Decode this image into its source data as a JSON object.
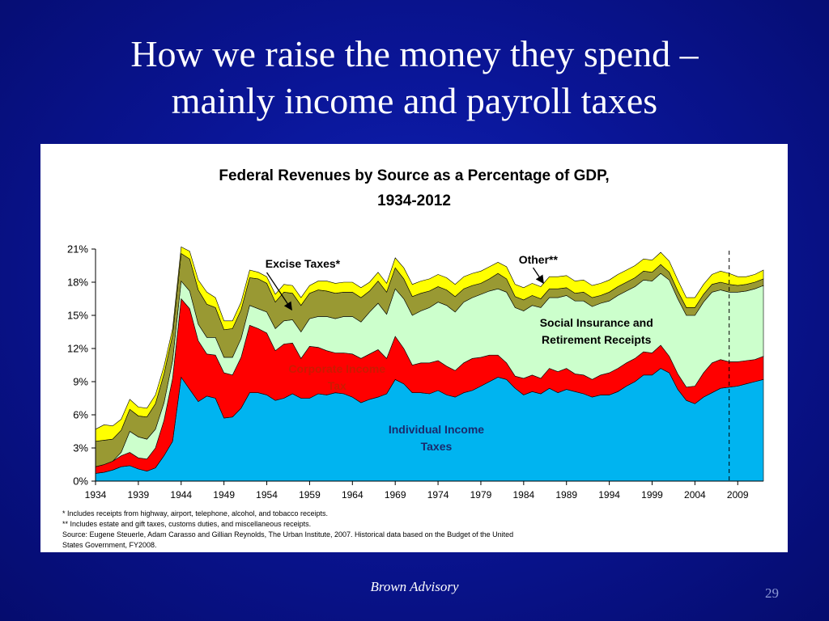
{
  "slide": {
    "title_line1": "How we raise the money they spend –",
    "title_line2": "mainly income and payroll taxes",
    "footer": "Brown Advisory",
    "page_number": "29"
  },
  "chart_data": {
    "type": "area",
    "stacked": true,
    "title_line1": "Federal Revenues by Source as a Percentage of GDP,",
    "title_line2": "1934-2012",
    "xlabel": "",
    "ylabel": "",
    "x_ticks": [
      "1934",
      "1939",
      "1944",
      "1949",
      "1954",
      "1959",
      "1964",
      "1969",
      "1974",
      "1979",
      "1984",
      "1989",
      "1994",
      "1999",
      "2004",
      "2009"
    ],
    "y_ticks": [
      "0%",
      "3%",
      "6%",
      "9%",
      "12%",
      "15%",
      "18%",
      "21%"
    ],
    "xlim": [
      1934,
      2012
    ],
    "ylim": [
      0,
      21
    ],
    "projection_line_year": 2008,
    "x": [
      1934,
      1935,
      1936,
      1937,
      1938,
      1939,
      1940,
      1941,
      1942,
      1943,
      1944,
      1945,
      1946,
      1947,
      1948,
      1949,
      1950,
      1951,
      1952,
      1953,
      1954,
      1955,
      1956,
      1957,
      1958,
      1959,
      1960,
      1961,
      1962,
      1963,
      1964,
      1965,
      1966,
      1967,
      1968,
      1969,
      1970,
      1971,
      1972,
      1973,
      1974,
      1975,
      1976,
      1977,
      1978,
      1979,
      1980,
      1981,
      1982,
      1983,
      1984,
      1985,
      1986,
      1987,
      1988,
      1989,
      1990,
      1991,
      1992,
      1993,
      1994,
      1995,
      1996,
      1997,
      1998,
      1999,
      2000,
      2001,
      2002,
      2003,
      2004,
      2005,
      2006,
      2007,
      2008,
      2009,
      2010,
      2011,
      2012
    ],
    "series": [
      {
        "name": "Individual Income Taxes",
        "color": "#00b4f0",
        "values": [
          0.7,
          0.8,
          1.0,
          1.3,
          1.4,
          1.1,
          0.9,
          1.2,
          2.3,
          3.6,
          9.4,
          8.3,
          7.2,
          7.7,
          7.5,
          5.7,
          5.8,
          6.6,
          8.0,
          8.0,
          7.8,
          7.3,
          7.5,
          7.9,
          7.5,
          7.5,
          7.9,
          7.8,
          8.0,
          7.9,
          7.6,
          7.1,
          7.4,
          7.6,
          7.9,
          9.2,
          8.8,
          8.0,
          8.0,
          7.9,
          8.2,
          7.8,
          7.6,
          8.0,
          8.2,
          8.6,
          9.0,
          9.4,
          9.2,
          8.4,
          7.8,
          8.1,
          7.9,
          8.4,
          8.0,
          8.3,
          8.1,
          7.9,
          7.6,
          7.8,
          7.8,
          8.1,
          8.6,
          9.0,
          9.6,
          9.6,
          10.2,
          9.8,
          8.3,
          7.3,
          7.0,
          7.6,
          8.0,
          8.4,
          8.5,
          8.6,
          8.8,
          9.0,
          9.2
        ]
      },
      {
        "name": "Corporate Income Tax",
        "color": "#ff0000",
        "values": [
          0.6,
          0.7,
          0.8,
          1.0,
          1.2,
          1.0,
          1.1,
          1.8,
          3.2,
          5.7,
          7.1,
          7.3,
          5.5,
          3.8,
          3.9,
          4.1,
          3.8,
          4.6,
          6.1,
          5.8,
          5.6,
          4.5,
          4.9,
          4.6,
          3.6,
          4.7,
          4.2,
          4.0,
          3.6,
          3.7,
          3.9,
          4.0,
          4.1,
          4.3,
          3.2,
          3.9,
          3.2,
          2.5,
          2.7,
          2.8,
          2.7,
          2.6,
          2.4,
          2.7,
          2.9,
          2.6,
          2.4,
          2.0,
          1.5,
          1.1,
          1.5,
          1.5,
          1.4,
          1.8,
          1.9,
          1.9,
          1.6,
          1.7,
          1.6,
          1.8,
          2.0,
          2.1,
          2.1,
          2.1,
          2.1,
          2.0,
          2.1,
          1.5,
          1.4,
          1.2,
          1.6,
          2.2,
          2.7,
          2.6,
          2.3,
          2.2,
          2.1,
          2.0,
          2.1
        ]
      },
      {
        "name": "Social Insurance and Retirement Receipts",
        "color": "#ccffcc",
        "values": [
          0.0,
          0.0,
          0.0,
          0.3,
          1.9,
          1.9,
          1.8,
          1.7,
          1.6,
          1.6,
          1.6,
          1.6,
          1.5,
          1.5,
          1.6,
          1.4,
          1.6,
          1.7,
          1.8,
          1.8,
          1.9,
          2.0,
          2.1,
          2.1,
          2.4,
          2.5,
          2.8,
          3.1,
          3.1,
          3.3,
          3.4,
          3.3,
          3.8,
          4.2,
          4.0,
          4.3,
          4.5,
          4.5,
          4.7,
          5.0,
          5.3,
          5.5,
          5.3,
          5.5,
          5.5,
          5.7,
          5.8,
          6.0,
          6.4,
          6.2,
          6.1,
          6.3,
          6.4,
          6.4,
          6.7,
          6.6,
          6.6,
          6.7,
          6.6,
          6.5,
          6.5,
          6.6,
          6.5,
          6.5,
          6.5,
          6.5,
          6.5,
          6.9,
          6.8,
          6.5,
          6.4,
          6.4,
          6.4,
          6.3,
          6.3,
          6.3,
          6.3,
          6.4,
          6.4
        ]
      },
      {
        "name": "Excise Taxes*",
        "color": "#999933",
        "values": [
          2.3,
          2.2,
          2.0,
          2.0,
          2.0,
          1.9,
          2.0,
          2.3,
          2.6,
          2.3,
          2.5,
          2.9,
          3.1,
          3.0,
          2.7,
          2.5,
          2.6,
          2.6,
          2.5,
          2.7,
          2.6,
          2.4,
          2.6,
          2.4,
          2.4,
          2.3,
          2.4,
          2.3,
          2.3,
          2.2,
          2.2,
          2.2,
          1.9,
          2.0,
          2.0,
          1.9,
          1.8,
          1.7,
          1.6,
          1.5,
          1.4,
          1.4,
          1.4,
          1.2,
          1.1,
          1.0,
          1.1,
          1.4,
          1.2,
          1.0,
          1.0,
          0.9,
          0.8,
          0.8,
          0.8,
          0.7,
          0.7,
          0.8,
          0.8,
          0.7,
          0.8,
          0.8,
          0.8,
          0.8,
          0.8,
          0.8,
          0.8,
          0.7,
          0.7,
          0.7,
          0.7,
          0.7,
          0.7,
          0.7,
          0.7,
          0.6,
          0.6,
          0.6,
          0.6
        ]
      },
      {
        "name": "Other**",
        "color": "#ffff00",
        "values": [
          1.1,
          1.4,
          1.2,
          1.0,
          0.9,
          0.8,
          0.8,
          0.8,
          0.7,
          0.6,
          0.6,
          0.7,
          0.9,
          1.1,
          0.9,
          0.8,
          0.7,
          0.7,
          0.7,
          0.6,
          0.6,
          0.7,
          0.7,
          0.7,
          0.7,
          0.7,
          0.8,
          0.9,
          0.9,
          0.9,
          0.9,
          0.9,
          0.8,
          0.8,
          0.8,
          0.9,
          1.0,
          1.1,
          1.1,
          1.1,
          1.1,
          1.1,
          1.1,
          1.1,
          1.1,
          1.1,
          1.1,
          1.0,
          1.1,
          1.1,
          1.1,
          1.1,
          1.1,
          1.1,
          1.1,
          1.1,
          1.1,
          1.1,
          1.1,
          1.1,
          1.1,
          1.1,
          1.1,
          1.1,
          1.1,
          1.1,
          1.1,
          1.0,
          1.0,
          0.9,
          0.9,
          0.9,
          0.9,
          1.0,
          1.0,
          0.8,
          0.7,
          0.7,
          0.8
        ]
      }
    ],
    "labels": {
      "individual": [
        "Individual Income",
        "Taxes"
      ],
      "corporate": [
        "Corporate Income",
        "Tax"
      ],
      "social": [
        "Social Insurance and",
        "Retirement Receipts"
      ],
      "excise": "Excise Taxes*",
      "other": "Other**"
    },
    "footnotes": [
      "* Includes receipts from highway, airport, telephone, alcohol, and tobacco receipts.",
      "** Includes estate and gift taxes, customs duties, and miscellaneous receipts.",
      "Source:  Eugene Steuerle, Adam Carasso and Gillian Reynolds, The Urban Institute, 2007.  Historical data based on the Budget of the United",
      "States Government, FY2008."
    ]
  }
}
